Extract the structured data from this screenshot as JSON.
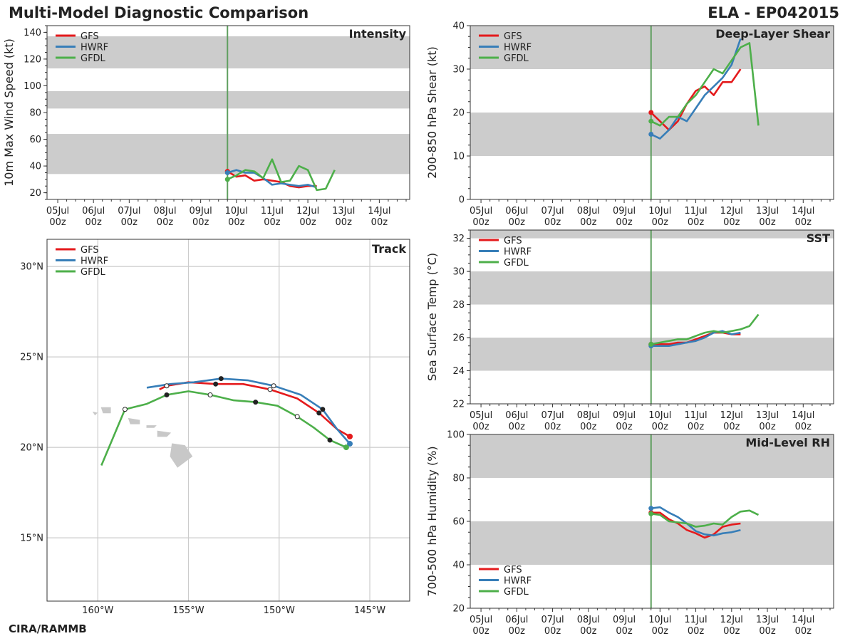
{
  "header": {
    "title": "Multi-Model Diagnostic Comparison",
    "storm": "ELA - EP042015",
    "credit": "CIRA/RAMMB"
  },
  "colors": {
    "GFS": "#e41a1c",
    "HWRF": "#377eb8",
    "GFDL": "#4daf4a",
    "band": "#cccccc",
    "grid": "#cccccc",
    "land": "#c8c8c8"
  },
  "legend_labels": [
    "GFS",
    "HWRF",
    "GFDL"
  ],
  "time_axis": {
    "ticks": [
      {
        "day": 5,
        "label": "05Jul\n00z"
      },
      {
        "day": 6,
        "label": "06Jul\n00z"
      },
      {
        "day": 7,
        "label": "07Jul\n00z"
      },
      {
        "day": 8,
        "label": "08Jul\n00z"
      },
      {
        "day": 9,
        "label": "09Jul\n00z"
      },
      {
        "day": 10,
        "label": "10Jul\n00z"
      },
      {
        "day": 11,
        "label": "11Jul\n00z"
      },
      {
        "day": 12,
        "label": "12Jul\n00z"
      },
      {
        "day": 13,
        "label": "13Jul\n00z"
      },
      {
        "day": 14,
        "label": "14Jul\n00z"
      }
    ],
    "range_days": [
      4.7,
      14.85
    ],
    "init_day": 9.75
  },
  "chart_data": [
    {
      "id": "intensity",
      "type": "line",
      "title": "Intensity",
      "xlabel": "",
      "ylabel": "10m Max Wind Speed (kt)",
      "ylim": [
        15,
        145
      ],
      "yticks": [
        20,
        40,
        60,
        80,
        100,
        120,
        140
      ],
      "bands": [
        [
          34,
          64
        ],
        [
          83,
          96
        ],
        [
          113,
          137
        ]
      ],
      "legend": "top-left",
      "series": [
        {
          "name": "GFS",
          "x": [
            9.75,
            10.0,
            10.25,
            10.5,
            10.75,
            11.0,
            11.25,
            11.5,
            11.75,
            12.0,
            12.25
          ],
          "y": [
            36,
            32,
            33,
            29,
            30,
            29,
            28,
            25,
            24,
            25,
            25
          ]
        },
        {
          "name": "HWRF",
          "x": [
            9.75,
            10.0,
            10.25,
            10.5,
            10.75,
            11.0,
            11.25,
            11.5,
            11.75,
            12.0,
            12.25
          ],
          "y": [
            35,
            37,
            35,
            35,
            31,
            26,
            27,
            26,
            25,
            26,
            24
          ]
        },
        {
          "name": "GFDL",
          "x": [
            9.75,
            10.0,
            10.25,
            10.5,
            10.75,
            11.0,
            11.25,
            11.5,
            11.75,
            12.0,
            12.25,
            12.5,
            12.75
          ],
          "y": [
            30,
            33,
            37,
            36,
            31,
            45,
            28,
            29,
            40,
            37,
            22,
            23,
            37
          ]
        }
      ]
    },
    {
      "id": "shear",
      "type": "line",
      "title": "Deep-Layer Shear",
      "xlabel": "",
      "ylabel": "200-850 hPa Shear (kt)",
      "ylim": [
        0,
        40
      ],
      "yticks": [
        0,
        10,
        20,
        30,
        40
      ],
      "bands": [
        [
          10,
          20
        ],
        [
          30,
          40
        ]
      ],
      "legend": "top-left",
      "series": [
        {
          "name": "GFS",
          "x": [
            9.75,
            10.0,
            10.25,
            10.5,
            10.75,
            11.0,
            11.25,
            11.5,
            11.75,
            12.0,
            12.25
          ],
          "y": [
            20,
            18,
            16,
            18,
            22,
            25,
            26,
            24,
            27,
            27,
            30
          ]
        },
        {
          "name": "HWRF",
          "x": [
            9.75,
            10.0,
            10.25,
            10.5,
            10.75,
            11.0,
            11.25,
            11.5,
            11.75,
            12.0,
            12.25
          ],
          "y": [
            15,
            14,
            16,
            19,
            18,
            21,
            24,
            26,
            28,
            31,
            37
          ]
        },
        {
          "name": "GFDL",
          "x": [
            9.75,
            10.0,
            10.25,
            10.5,
            10.75,
            11.0,
            11.25,
            11.5,
            11.75,
            12.0,
            12.25,
            12.5,
            12.75
          ],
          "y": [
            18,
            17,
            19,
            19,
            22,
            24,
            27,
            30,
            29,
            32,
            35,
            36,
            17
          ]
        }
      ]
    },
    {
      "id": "sst",
      "type": "line",
      "title": "SST",
      "xlabel": "",
      "ylabel": "Sea Surface Temp (°C)",
      "ylim": [
        22,
        32.5
      ],
      "yticks": [
        22,
        24,
        26,
        28,
        30,
        32
      ],
      "bands": [
        [
          24,
          26
        ],
        [
          28,
          30
        ],
        [
          32,
          32.5
        ]
      ],
      "legend": "top-left",
      "series": [
        {
          "name": "GFS",
          "x": [
            9.75,
            10.0,
            10.25,
            10.5,
            10.75,
            11.0,
            11.25,
            11.5,
            11.75,
            12.0,
            12.25
          ],
          "y": [
            25.6,
            25.6,
            25.6,
            25.7,
            25.7,
            25.9,
            26.1,
            26.3,
            26.3,
            26.2,
            26.2
          ]
        },
        {
          "name": "HWRF",
          "x": [
            9.75,
            10.0,
            10.25,
            10.5,
            10.75,
            11.0,
            11.25,
            11.5,
            11.75,
            12.0,
            12.25
          ],
          "y": [
            25.5,
            25.5,
            25.5,
            25.6,
            25.7,
            25.8,
            26.0,
            26.3,
            26.4,
            26.2,
            26.3
          ]
        },
        {
          "name": "GFDL",
          "x": [
            9.75,
            10.0,
            10.25,
            10.5,
            10.75,
            11.0,
            11.25,
            11.5,
            11.75,
            12.0,
            12.25,
            12.5,
            12.75
          ],
          "y": [
            25.6,
            25.7,
            25.8,
            25.9,
            25.9,
            26.1,
            26.3,
            26.4,
            26.3,
            26.4,
            26.5,
            26.7,
            27.4
          ]
        }
      ]
    },
    {
      "id": "rh",
      "type": "line",
      "title": "Mid-Level RH",
      "xlabel": "",
      "ylabel": "700-500 hPa Humidity (%)",
      "ylim": [
        20,
        100
      ],
      "yticks": [
        20,
        40,
        60,
        80,
        100
      ],
      "bands": [
        [
          40,
          60
        ],
        [
          80,
          100
        ]
      ],
      "legend": "bottom-left",
      "series": [
        {
          "name": "GFS",
          "x": [
            9.75,
            10.0,
            10.25,
            10.5,
            10.75,
            11.0,
            11.25,
            11.5,
            11.75,
            12.0,
            12.25
          ],
          "y": [
            64,
            64,
            61,
            59,
            56,
            54.5,
            52.5,
            54,
            57.5,
            58.5,
            59
          ]
        },
        {
          "name": "HWRF",
          "x": [
            9.75,
            10.0,
            10.25,
            10.5,
            10.75,
            11.0,
            11.25,
            11.5,
            11.75,
            12.0,
            12.25
          ],
          "y": [
            66,
            66.5,
            64,
            62,
            59,
            55.5,
            54,
            53.5,
            54.5,
            55,
            56
          ]
        },
        {
          "name": "GFDL",
          "x": [
            9.75,
            10.0,
            10.25,
            10.5,
            10.75,
            11.0,
            11.25,
            11.5,
            11.75,
            12.0,
            12.25,
            12.5,
            12.75
          ],
          "y": [
            63.5,
            63,
            60,
            59.5,
            59,
            57.5,
            58,
            59,
            58.5,
            62,
            64.5,
            65,
            63
          ]
        }
      ]
    },
    {
      "id": "track",
      "type": "scatter",
      "title": "Track",
      "xlabel": "",
      "ylabel": "",
      "xlim": [
        -162.8,
        -142.8
      ],
      "ylim": [
        11.5,
        31.5
      ],
      "xticks": [
        {
          "v": -160,
          "label": "160°W"
        },
        {
          "v": -155,
          "label": "155°W"
        },
        {
          "v": -150,
          "label": "150°W"
        },
        {
          "v": -145,
          "label": "145°W"
        }
      ],
      "yticks": [
        {
          "v": 15,
          "label": "15°N"
        },
        {
          "v": 20,
          "label": "20°N"
        },
        {
          "v": 25,
          "label": "25°N"
        },
        {
          "v": 30,
          "label": "30°N"
        }
      ],
      "legend": "top-left",
      "series": [
        {
          "name": "GFS",
          "lon": [
            -146.1,
            -146.8,
            -147.8,
            -149.0,
            -150.5,
            -152.0,
            -153.5,
            -155.0,
            -156.2,
            -156.6
          ],
          "lat": [
            20.6,
            21.0,
            21.9,
            22.7,
            23.2,
            23.5,
            23.5,
            23.6,
            23.4,
            23.2
          ],
          "marker_index": [
            0,
            2,
            4,
            6,
            8
          ]
        },
        {
          "name": "HWRF",
          "lon": [
            -146.1,
            -146.8,
            -147.6,
            -148.8,
            -150.3,
            -151.7,
            -153.2,
            -154.7,
            -156.0,
            -157.3
          ],
          "lat": [
            20.2,
            21.0,
            22.1,
            22.9,
            23.4,
            23.7,
            23.8,
            23.6,
            23.5,
            23.3
          ],
          "marker_index": [
            0,
            2,
            4,
            6
          ]
        },
        {
          "name": "GFDL",
          "lon": [
            -146.3,
            -147.2,
            -148.1,
            -149.0,
            -150.1,
            -151.3,
            -152.5,
            -153.8,
            -155.0,
            -156.2,
            -157.3,
            -158.5,
            -159.8
          ],
          "lat": [
            20.0,
            20.4,
            21.1,
            21.7,
            22.3,
            22.5,
            22.6,
            22.9,
            23.1,
            22.9,
            22.4,
            22.1,
            19.0
          ],
          "marker_index": [
            0,
            1,
            3,
            5,
            7,
            9,
            11
          ]
        }
      ]
    }
  ]
}
